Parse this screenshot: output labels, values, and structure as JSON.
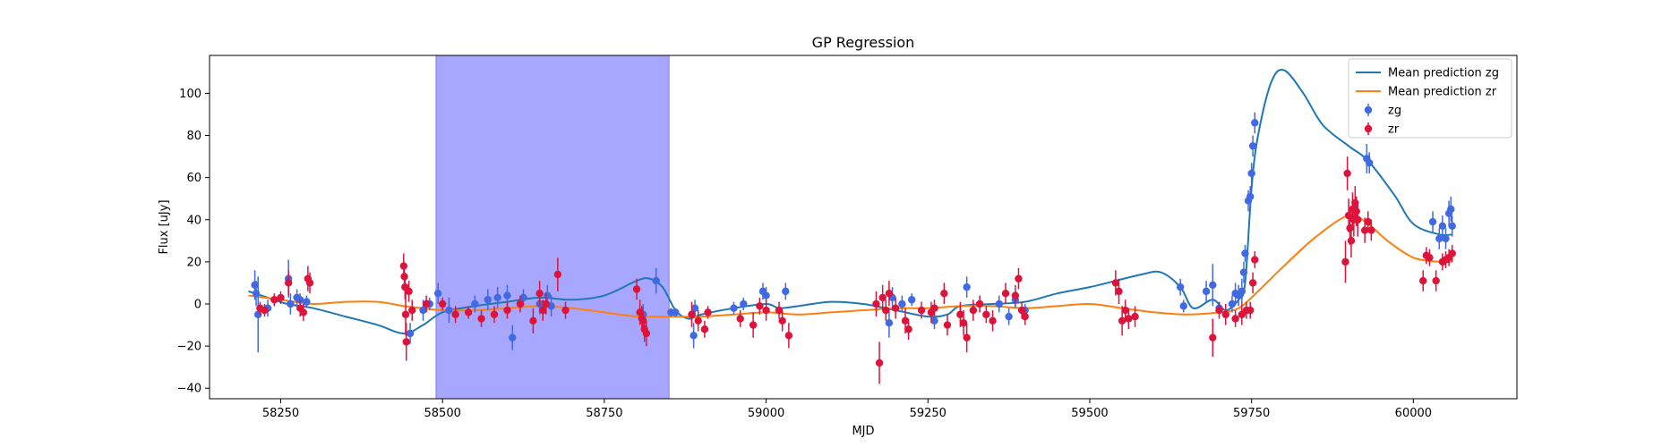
{
  "chart_data": {
    "type": "scatter",
    "title": "GP Regression",
    "xlabel": "MJD",
    "ylabel": "Flux [uJy]",
    "xlim": [
      58140,
      60160
    ],
    "ylim": [
      -45,
      118
    ],
    "xticks": [
      58250,
      58500,
      58750,
      59000,
      59250,
      59500,
      59750,
      60000
    ],
    "yticks": [
      -40,
      -20,
      0,
      20,
      40,
      60,
      80,
      100
    ],
    "shaded_region": {
      "x_start": 58490,
      "x_end": 58850,
      "color": "#a7a7ff"
    },
    "legend_position": "top-right",
    "lines": [
      {
        "name": "Mean prediction zg",
        "color": "#1f77b4",
        "points": [
          [
            58200,
            6
          ],
          [
            58230,
            3
          ],
          [
            58260,
            0
          ],
          [
            58300,
            -2
          ],
          [
            58350,
            -6
          ],
          [
            58400,
            -10
          ],
          [
            58440,
            -14
          ],
          [
            58470,
            -10
          ],
          [
            58500,
            -4
          ],
          [
            58550,
            -1
          ],
          [
            58600,
            1
          ],
          [
            58650,
            3
          ],
          [
            58700,
            2
          ],
          [
            58750,
            4
          ],
          [
            58800,
            11
          ],
          [
            58820,
            12
          ],
          [
            58840,
            8
          ],
          [
            58860,
            -3
          ],
          [
            58880,
            -7
          ],
          [
            58900,
            -5
          ],
          [
            58950,
            -2
          ],
          [
            59000,
            0
          ],
          [
            59020,
            -2
          ],
          [
            59050,
            -1
          ],
          [
            59100,
            1
          ],
          [
            59150,
            0
          ],
          [
            59200,
            -3
          ],
          [
            59250,
            -6
          ],
          [
            59280,
            -5
          ],
          [
            59300,
            -1
          ],
          [
            59350,
            0
          ],
          [
            59400,
            1
          ],
          [
            59450,
            5
          ],
          [
            59500,
            8
          ],
          [
            59540,
            11
          ],
          [
            59580,
            14
          ],
          [
            59610,
            15
          ],
          [
            59640,
            8
          ],
          [
            59660,
            -2
          ],
          [
            59690,
            2
          ],
          [
            59710,
            -3
          ],
          [
            59730,
            2
          ],
          [
            59740,
            10
          ],
          [
            59750,
            55
          ],
          [
            59760,
            80
          ],
          [
            59780,
            105
          ],
          [
            59800,
            111
          ],
          [
            59830,
            100
          ],
          [
            59860,
            85
          ],
          [
            59900,
            75
          ],
          [
            59930,
            68
          ],
          [
            59970,
            52
          ],
          [
            60000,
            38
          ],
          [
            60040,
            33
          ],
          [
            60060,
            33
          ]
        ]
      },
      {
        "name": "Mean prediction zr",
        "color": "#ff7f0e",
        "points": [
          [
            58200,
            4
          ],
          [
            58250,
            2
          ],
          [
            58300,
            0
          ],
          [
            58350,
            1
          ],
          [
            58400,
            1
          ],
          [
            58440,
            -1
          ],
          [
            58470,
            -2
          ],
          [
            58500,
            -3
          ],
          [
            58550,
            -3
          ],
          [
            58600,
            -2
          ],
          [
            58650,
            -1
          ],
          [
            58700,
            -2
          ],
          [
            58750,
            -4
          ],
          [
            58800,
            -6
          ],
          [
            58850,
            -6
          ],
          [
            58900,
            -6
          ],
          [
            58950,
            -5
          ],
          [
            59000,
            -4
          ],
          [
            59050,
            -5
          ],
          [
            59100,
            -4
          ],
          [
            59150,
            -3
          ],
          [
            59200,
            -2
          ],
          [
            59250,
            -2
          ],
          [
            59300,
            -1
          ],
          [
            59350,
            -1
          ],
          [
            59400,
            -2
          ],
          [
            59450,
            -1
          ],
          [
            59500,
            0
          ],
          [
            59550,
            -2
          ],
          [
            59600,
            -4
          ],
          [
            59650,
            -5
          ],
          [
            59700,
            -4
          ],
          [
            59730,
            -2
          ],
          [
            59760,
            6
          ],
          [
            59800,
            18
          ],
          [
            59850,
            32
          ],
          [
            59900,
            42
          ],
          [
            59930,
            38
          ],
          [
            59960,
            30
          ],
          [
            60000,
            22
          ],
          [
            60040,
            20
          ],
          [
            60060,
            20
          ]
        ]
      }
    ],
    "series": [
      {
        "name": "zg",
        "color": "#4169e1",
        "points": [
          [
            58210,
            9,
            7
          ],
          [
            58212,
            5,
            6
          ],
          [
            58215,
            -5,
            18
          ],
          [
            58230,
            -2,
            4
          ],
          [
            58262,
            12,
            9
          ],
          [
            58265,
            0,
            5
          ],
          [
            58275,
            3,
            4
          ],
          [
            58280,
            2,
            3
          ],
          [
            58290,
            1,
            3
          ],
          [
            58450,
            -14,
            5
          ],
          [
            58470,
            -3,
            5
          ],
          [
            58480,
            0,
            3
          ],
          [
            58493,
            5,
            5
          ],
          [
            58510,
            -3,
            6
          ],
          [
            58550,
            0,
            4
          ],
          [
            58570,
            2,
            5
          ],
          [
            58585,
            3,
            5
          ],
          [
            58600,
            4,
            5
          ],
          [
            58608,
            -16,
            6
          ],
          [
            58625,
            3,
            4
          ],
          [
            58650,
            0,
            5
          ],
          [
            58662,
            4,
            5
          ],
          [
            58668,
            -1,
            5
          ],
          [
            58810,
            -5,
            5
          ],
          [
            58830,
            11,
            6
          ],
          [
            58853,
            -4,
            2
          ],
          [
            58860,
            -4,
            2
          ],
          [
            58888,
            -15,
            6
          ],
          [
            58890,
            -2,
            4
          ],
          [
            58950,
            -2,
            3
          ],
          [
            58965,
            0,
            3
          ],
          [
            58995,
            6,
            4
          ],
          [
            59000,
            4,
            4
          ],
          [
            59030,
            6,
            4
          ],
          [
            59190,
            -9,
            7
          ],
          [
            59195,
            3,
            5
          ],
          [
            59210,
            0,
            4
          ],
          [
            59225,
            2,
            3
          ],
          [
            59260,
            -8,
            4
          ],
          [
            59300,
            -5,
            4
          ],
          [
            59310,
            8,
            5
          ],
          [
            59360,
            0,
            4
          ],
          [
            59375,
            -6,
            4
          ],
          [
            59385,
            2,
            4
          ],
          [
            59400,
            -3,
            3
          ],
          [
            59640,
            8,
            4
          ],
          [
            59645,
            -1,
            3
          ],
          [
            59680,
            6,
            5
          ],
          [
            59690,
            9,
            10
          ],
          [
            59700,
            -2,
            3
          ],
          [
            59720,
            0,
            4
          ],
          [
            59725,
            5,
            5
          ],
          [
            59730,
            4,
            5
          ],
          [
            59735,
            6,
            6
          ],
          [
            59738,
            15,
            5
          ],
          [
            59740,
            24,
            4
          ],
          [
            59745,
            49,
            5
          ],
          [
            59748,
            51,
            5
          ],
          [
            59750,
            62,
            5
          ],
          [
            59752,
            75,
            5
          ],
          [
            59755,
            86,
            5
          ],
          [
            59928,
            69,
            7
          ],
          [
            59932,
            67,
            5
          ],
          [
            60030,
            39,
            5
          ],
          [
            60040,
            31,
            5
          ],
          [
            60045,
            37,
            5
          ],
          [
            60050,
            31,
            5
          ],
          [
            60055,
            43,
            6
          ],
          [
            60058,
            45,
            6
          ],
          [
            60060,
            37,
            5
          ]
        ]
      },
      {
        "name": "zr",
        "color": "#dc143c",
        "points": [
          [
            58218,
            -2,
            3
          ],
          [
            58225,
            -3,
            3
          ],
          [
            58240,
            2,
            3
          ],
          [
            58250,
            3,
            3
          ],
          [
            58262,
            10,
            6
          ],
          [
            58280,
            -2,
            4
          ],
          [
            58285,
            -4,
            4
          ],
          [
            58292,
            12,
            6
          ],
          [
            58295,
            10,
            5
          ],
          [
            58440,
            18,
            6
          ],
          [
            58441,
            13,
            6
          ],
          [
            58442,
            8,
            6
          ],
          [
            58443,
            -5,
            10
          ],
          [
            58444,
            -18,
            9
          ],
          [
            58448,
            6,
            5
          ],
          [
            58453,
            -3,
            5
          ],
          [
            58475,
            0,
            4
          ],
          [
            58500,
            0,
            3
          ],
          [
            58520,
            -5,
            4
          ],
          [
            58540,
            -4,
            3
          ],
          [
            58560,
            -7,
            4
          ],
          [
            58580,
            -5,
            4
          ],
          [
            58600,
            -3,
            4
          ],
          [
            58620,
            0,
            4
          ],
          [
            58640,
            -8,
            6
          ],
          [
            58650,
            5,
            6
          ],
          [
            58655,
            -3,
            5
          ],
          [
            58660,
            0,
            5
          ],
          [
            58678,
            14,
            8
          ],
          [
            58690,
            -3,
            4
          ],
          [
            58800,
            7,
            5
          ],
          [
            58805,
            -4,
            6
          ],
          [
            58808,
            -7,
            6
          ],
          [
            58810,
            -8,
            5
          ],
          [
            58812,
            -12,
            6
          ],
          [
            58815,
            -14,
            6
          ],
          [
            58885,
            -5,
            6
          ],
          [
            58895,
            -8,
            5
          ],
          [
            58905,
            -12,
            4
          ],
          [
            58910,
            -4,
            3
          ],
          [
            58960,
            -7,
            4
          ],
          [
            58980,
            -10,
            6
          ],
          [
            58990,
            -1,
            4
          ],
          [
            59000,
            -3,
            5
          ],
          [
            59020,
            -3,
            4
          ],
          [
            59025,
            -8,
            5
          ],
          [
            59035,
            -15,
            6
          ],
          [
            59170,
            0,
            6
          ],
          [
            59175,
            -28,
            10
          ],
          [
            59180,
            3,
            6
          ],
          [
            59185,
            -3,
            5
          ],
          [
            59190,
            5,
            6
          ],
          [
            59200,
            -2,
            5
          ],
          [
            59215,
            -8,
            6
          ],
          [
            59220,
            -12,
            5
          ],
          [
            59240,
            -3,
            4
          ],
          [
            59255,
            -4,
            5
          ],
          [
            59260,
            -2,
            4
          ],
          [
            59275,
            5,
            5
          ],
          [
            59280,
            -10,
            5
          ],
          [
            59300,
            -5,
            6
          ],
          [
            59305,
            -9,
            6
          ],
          [
            59310,
            -16,
            7
          ],
          [
            59320,
            -3,
            5
          ],
          [
            59330,
            0,
            4
          ],
          [
            59340,
            -5,
            4
          ],
          [
            59350,
            -8,
            5
          ],
          [
            59370,
            5,
            5
          ],
          [
            59385,
            4,
            5
          ],
          [
            59390,
            12,
            5
          ],
          [
            59395,
            -3,
            4
          ],
          [
            59400,
            -6,
            4
          ],
          [
            59540,
            10,
            6
          ],
          [
            59545,
            6,
            6
          ],
          [
            59550,
            -8,
            7
          ],
          [
            59555,
            -3,
            5
          ],
          [
            59560,
            -7,
            5
          ],
          [
            59570,
            -6,
            5
          ],
          [
            59690,
            -16,
            9
          ],
          [
            59700,
            -3,
            4
          ],
          [
            59710,
            -5,
            5
          ],
          [
            59725,
            -7,
            4
          ],
          [
            59735,
            -5,
            5
          ],
          [
            59742,
            -3,
            4
          ],
          [
            59748,
            -3,
            4
          ],
          [
            59752,
            10,
            5
          ],
          [
            59755,
            21,
            4
          ],
          [
            59895,
            20,
            10
          ],
          [
            59898,
            62,
            8
          ],
          [
            59900,
            42,
            8
          ],
          [
            59902,
            36,
            8
          ],
          [
            59904,
            30,
            8
          ],
          [
            59906,
            45,
            8
          ],
          [
            59908,
            40,
            8
          ],
          [
            59910,
            48,
            8
          ],
          [
            59912,
            44,
            7
          ],
          [
            59914,
            40,
            8
          ],
          [
            59925,
            35,
            6
          ],
          [
            59930,
            39,
            5
          ],
          [
            59935,
            35,
            5
          ],
          [
            60015,
            11,
            5
          ],
          [
            60020,
            23,
            4
          ],
          [
            60025,
            22,
            4
          ],
          [
            60035,
            11,
            5
          ],
          [
            60045,
            20,
            4
          ],
          [
            60050,
            21,
            4
          ],
          [
            60055,
            22,
            4
          ],
          [
            60060,
            24,
            4
          ]
        ]
      }
    ]
  }
}
